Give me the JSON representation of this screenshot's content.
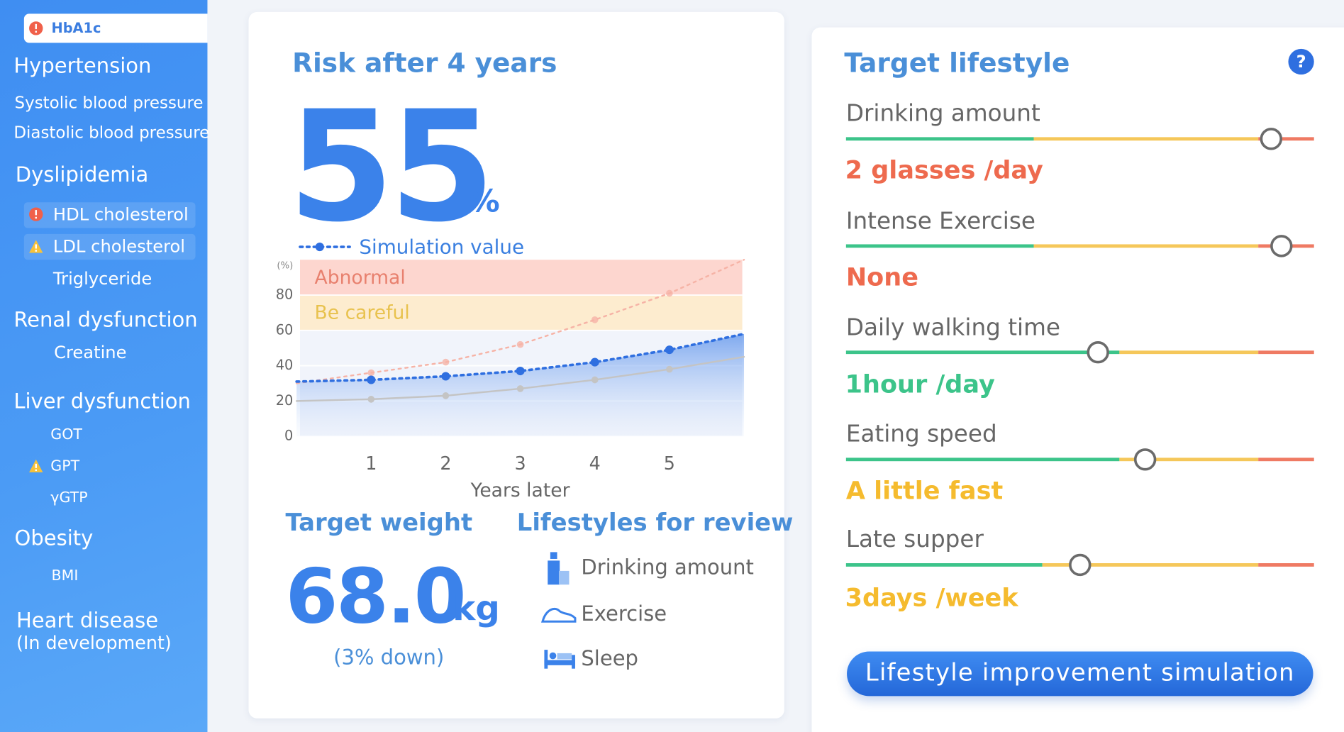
{
  "sidebar": {
    "top_item": "HbA1c",
    "groups": [
      {
        "title": "Hypertension",
        "items": [
          "Systolic blood pressure",
          "Diastolic blood pressure"
        ]
      },
      {
        "title": "Dyslipidemia",
        "items": [
          "HDL cholesterol",
          "LDL cholesterol",
          "Triglyceride"
        ]
      },
      {
        "title": "Renal dysfunction",
        "items": [
          "Creatine"
        ]
      },
      {
        "title": "Liver dysfunction",
        "items": [
          "GOT",
          "GPT",
          "γGTP"
        ]
      },
      {
        "title": "Obesity",
        "items": [
          "BMI"
        ]
      },
      {
        "title": "Heart disease",
        "note": "(In development)"
      }
    ]
  },
  "risk": {
    "title": "Risk after 4 years",
    "value": 55,
    "unit": "%"
  },
  "chart_data": {
    "type": "line",
    "xlabel": "Years later",
    "ylabel": "(%)",
    "x": [
      0,
      1,
      2,
      3,
      4,
      5,
      6
    ],
    "xlim": [
      0,
      6
    ],
    "xticks": [
      1,
      2,
      3,
      4,
      5
    ],
    "ylim": [
      0,
      100
    ],
    "yticks": [
      0,
      20,
      40,
      60,
      80
    ],
    "grid": true,
    "bands": [
      {
        "label": "Abnormal",
        "from": 80,
        "to": 100,
        "color": "#fdd6cf",
        "label_color": "#e8806e"
      },
      {
        "label": "Be careful",
        "from": 60,
        "to": 80,
        "color": "#fdeccf",
        "label_color": "#e8c24e"
      }
    ],
    "series": [
      {
        "name": "Simulation value",
        "color": "#2f6fe0",
        "style": "dotted",
        "values": [
          31,
          32,
          34,
          37,
          42,
          49,
          58
        ]
      },
      {
        "color": "#c4c4c4",
        "style": "solid",
        "values": [
          20,
          21,
          23,
          27,
          32,
          38,
          45
        ]
      },
      {
        "color": "#f6b3a6",
        "style": "dotted",
        "values": [
          30,
          36,
          42,
          52,
          66,
          81,
          100
        ]
      }
    ]
  },
  "weight": {
    "title": "Target weight",
    "value": "68.0",
    "unit": "kg",
    "note": "(3% down)"
  },
  "review": {
    "title": "Lifestyles for review",
    "items": [
      "Drinking amount",
      "Exercise",
      "Sleep"
    ]
  },
  "target": {
    "title": "Target lifestyle",
    "items": [
      {
        "label": "Drinking amount",
        "value": "2 glasses /day"
      },
      {
        "label": "Intense Exercise",
        "value": "None"
      },
      {
        "label": "Daily walking time",
        "value": "1hour /day"
      },
      {
        "label": "Eating speed",
        "value": "A little fast"
      },
      {
        "label": "Late supper",
        "value": "3days /week"
      }
    ],
    "button": "Lifestyle improvement simulation"
  }
}
